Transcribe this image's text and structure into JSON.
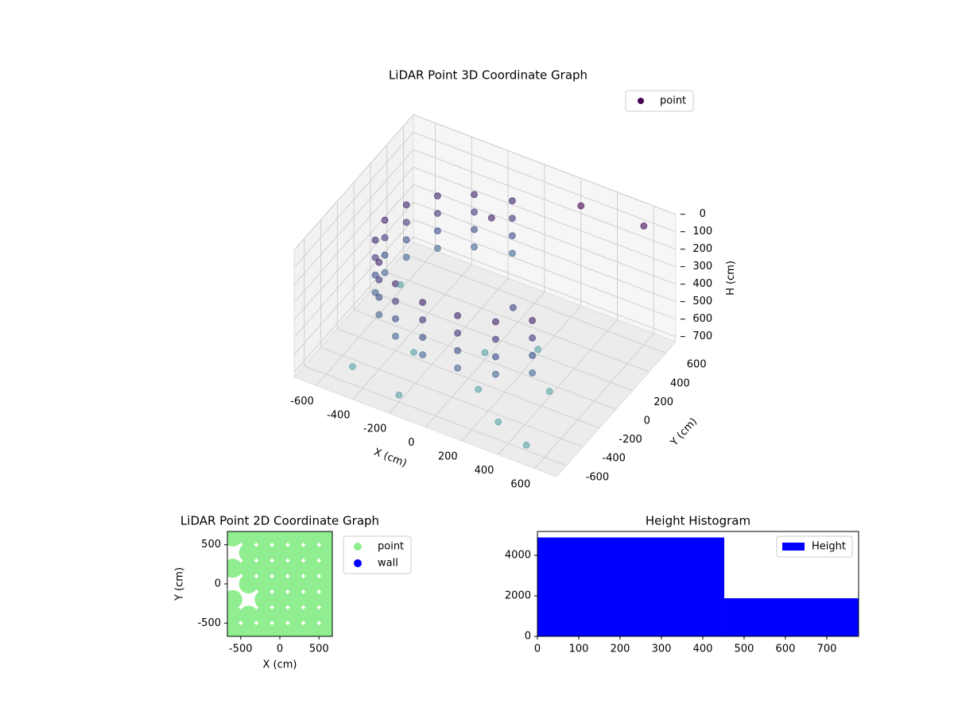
{
  "chart_data": [
    {
      "type": "scatter3d",
      "title": "LiDAR Point 3D Coordinate Graph",
      "x_label": "X (cm)",
      "y_label": "Y (cm)",
      "z_label": "H (cm)",
      "xlim": [
        -720,
        720
      ],
      "ylim": [
        -720,
        720
      ],
      "zlim": [
        0,
        730
      ],
      "z_inverted": true,
      "xticks": [
        -600,
        -400,
        -200,
        0,
        200,
        400,
        600
      ],
      "yticks": [
        -600,
        -400,
        -200,
        0,
        200,
        400,
        600
      ],
      "zticks": [
        0,
        100,
        200,
        300,
        400,
        500,
        600,
        700
      ],
      "colormap": [
        "#440154",
        "#3b528b",
        "#5ba8a8"
      ],
      "legend_color": "#440154",
      "grid": true,
      "legend": "upper right",
      "series": [
        {
          "name": "point",
          "x": [
            -96,
            -96,
            -96,
            -96,
            -275,
            -275,
            -275,
            -275,
            -421,
            -421,
            -421,
            -421,
            -517,
            -517,
            -517,
            -517,
            -550,
            -550,
            -550,
            -550,
            -517,
            -517,
            -517,
            -517,
            -421,
            -421,
            -421,
            -421,
            -275,
            -275,
            -275,
            -275,
            -96,
            -96,
            -96,
            -96,
            96,
            96,
            96,
            96,
            275,
            275,
            275,
            275,
            421,
            421,
            421,
            421,
            -500,
            -200,
            100,
            300,
            500,
            -600,
            0,
            200,
            400,
            -300,
            300,
            600,
            -100,
            200
          ],
          "y": [
            542,
            542,
            542,
            542,
            476,
            476,
            476,
            476,
            354,
            354,
            354,
            354,
            188,
            188,
            188,
            188,
            0,
            0,
            0,
            0,
            -188,
            -188,
            -188,
            -188,
            -354,
            -354,
            -354,
            -354,
            -476,
            -476,
            -476,
            -476,
            -542,
            -542,
            -542,
            -542,
            -542,
            -542,
            -542,
            -542,
            -476,
            -476,
            -476,
            -476,
            -354,
            -354,
            -354,
            -354,
            -500,
            -600,
            -300,
            -500,
            -600,
            300,
            0,
            200,
            -100,
            -200,
            500,
            600,
            300,
            -100
          ],
          "z": [
            150,
            250,
            350,
            450,
            150,
            250,
            350,
            450,
            150,
            250,
            350,
            450,
            150,
            250,
            350,
            450,
            150,
            250,
            350,
            450,
            150,
            250,
            350,
            450,
            150,
            250,
            350,
            450,
            150,
            250,
            350,
            450,
            150,
            250,
            350,
            450,
            150,
            250,
            350,
            450,
            150,
            250,
            350,
            450,
            150,
            250,
            350,
            450,
            700,
            690,
            700,
            700,
            700,
            700,
            690,
            700,
            700,
            700,
            0,
            50,
            120,
            300
          ]
        }
      ]
    },
    {
      "type": "scatter",
      "title": "LiDAR Point 2D Coordinate Graph",
      "x_label": "X (cm)",
      "y_label": "Y (cm)",
      "xlim": [
        -670,
        670
      ],
      "ylim": [
        -670,
        670
      ],
      "xticks": [
        -500,
        0,
        500
      ],
      "yticks": [
        -500,
        0,
        500
      ],
      "legend": "outside right",
      "series": [
        {
          "name": "point",
          "color": "#90ee90",
          "x": [
            -600,
            -400,
            -200,
            0,
            200,
            400,
            600,
            -400,
            -200,
            0,
            200,
            400,
            600,
            -600,
            -400,
            -200,
            0,
            200,
            400,
            600,
            -400,
            -200,
            0,
            200,
            400,
            600,
            -600,
            -200,
            0,
            200,
            400,
            600,
            -600,
            -400,
            -200,
            0,
            200,
            400,
            600,
            -600,
            -400,
            -200,
            0,
            200,
            400,
            600
          ],
          "y": [
            600,
            600,
            600,
            600,
            600,
            600,
            600,
            400,
            400,
            400,
            400,
            400,
            400,
            200,
            200,
            200,
            200,
            200,
            200,
            200,
            0,
            0,
            0,
            0,
            0,
            0,
            -200,
            -200,
            -200,
            -200,
            -200,
            -200,
            -400,
            -400,
            -400,
            -400,
            -400,
            -400,
            -400,
            -600,
            -600,
            -600,
            -600,
            -600,
            -600,
            -600
          ]
        },
        {
          "name": "wall",
          "color": "#0000ff",
          "x": [],
          "y": []
        }
      ]
    },
    {
      "type": "histogram",
      "title": "Height Histogram",
      "legend": "upper right",
      "xlim": [
        0,
        777
      ],
      "ylim": [
        0,
        5176
      ],
      "xticks": [
        0,
        100,
        200,
        300,
        400,
        500,
        600,
        700
      ],
      "yticks": [
        0,
        2000,
        4000
      ],
      "series": [
        {
          "name": "Height",
          "color": "#0000ff",
          "bins": [
            0,
            452,
            777
          ],
          "values": [
            4880,
            1880
          ]
        }
      ]
    }
  ]
}
